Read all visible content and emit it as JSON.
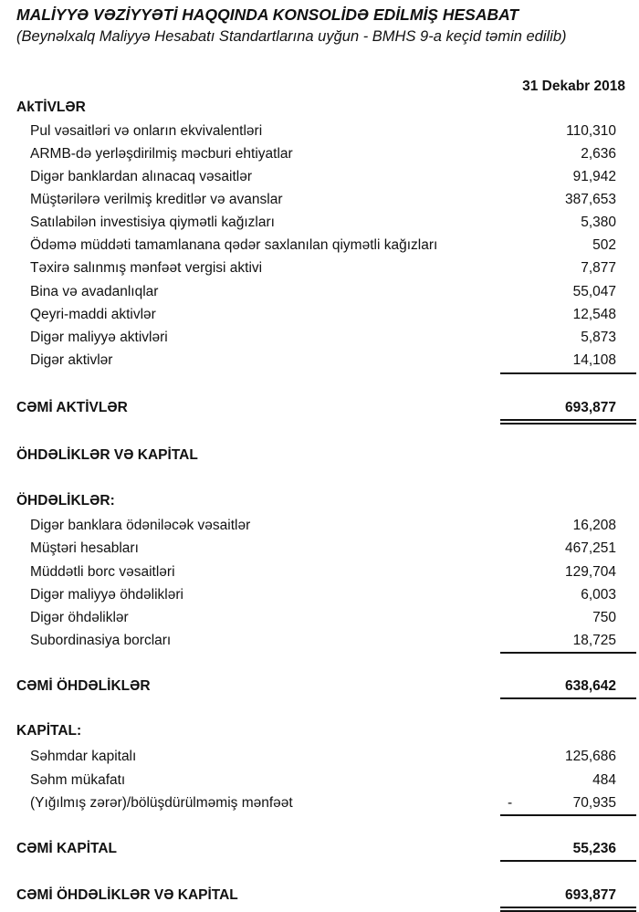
{
  "title": "MALİYYƏ VƏZİYYƏTİ HAQQINDA KONSOLİDƏ EDİLMİŞ HESABAT",
  "subtitle": "(Beynəlxalq Maliyyə Hesabatı Standartlarına uyğun - BMHS 9-a keçid təmin edilib)",
  "column_header": "31 Dekabr 2018",
  "rows": [
    {
      "type": "header",
      "label": "AkTİVLƏR"
    },
    {
      "type": "item",
      "label": "Pul vəsaitləri və onların ekvivalentləri",
      "value": "110,310"
    },
    {
      "type": "item",
      "label": "ARMB-də yerləşdirilmiş məcburi ehtiyatlar",
      "value": "2,636"
    },
    {
      "type": "item",
      "label": "Digər banklardan alınacaq vəsaitlər",
      "value": "91,942"
    },
    {
      "type": "item",
      "label": "Müştərilərə verilmiş kreditlər və avanslar",
      "value": "387,653"
    },
    {
      "type": "item",
      "label": "Satılabilən investisiya qiymətli kağızları",
      "value": "5,380"
    },
    {
      "type": "item",
      "label": "Ödəmə müddəti tamamlanana qədər saxlanılan qiymətli kağızları",
      "value": "502"
    },
    {
      "type": "item",
      "label": "Təxirə salınmış mənfəət vergisi aktivi",
      "value": "7,877"
    },
    {
      "type": "item",
      "label": "Bina və avadanlıqlar",
      "value": "55,047"
    },
    {
      "type": "item",
      "label": "Qeyri-maddi aktivlər",
      "value": "12,548"
    },
    {
      "type": "item",
      "label": "Digər maliyyə aktivləri",
      "value": "5,873"
    },
    {
      "type": "item",
      "label": "Digər aktivlər",
      "value": "14,108"
    },
    {
      "type": "total",
      "label": "CƏMİ AKTİVLƏR",
      "value": "693,877"
    },
    {
      "type": "header",
      "label": "ÖHDƏLİKLƏR VƏ KAPİTAL"
    },
    {
      "type": "header",
      "label": "ÖHDƏLİKLƏR:"
    },
    {
      "type": "item",
      "label": "Digər banklara ödəniləcək vəsaitlər",
      "value": "16,208"
    },
    {
      "type": "item",
      "label": "Müştəri hesabları",
      "value": "467,251"
    },
    {
      "type": "item",
      "label": "Müddətli borc vəsaitləri",
      "value": "129,704"
    },
    {
      "type": "item",
      "label": "Digər maliyyə öhdəlikləri",
      "value": "6,003"
    },
    {
      "type": "item",
      "label": "Digər öhdəliklər",
      "value": "750"
    },
    {
      "type": "item",
      "label": "Subordinasiya borcları",
      "value": "18,725"
    },
    {
      "type": "total",
      "label": "CƏMİ ÖHDƏLİKLƏR",
      "value": "638,642"
    },
    {
      "type": "header",
      "label": "KAPİTAL:"
    },
    {
      "type": "item",
      "label": "Səhmdar kapitalı",
      "value": "125,686"
    },
    {
      "type": "item",
      "label": "Səhm mükafatı",
      "value": "484"
    },
    {
      "type": "item",
      "label": "(Yığılmış zərər)/bölüşdürülməmiş mənfəət",
      "value": "70,935",
      "sign": "-"
    },
    {
      "type": "total",
      "label": "CƏMİ KAPİTAL",
      "value": "55,236"
    },
    {
      "type": "total",
      "label": "CƏMİ ÖHDƏLİKLƏR VƏ KAPİTAL",
      "value": "693,877"
    }
  ]
}
